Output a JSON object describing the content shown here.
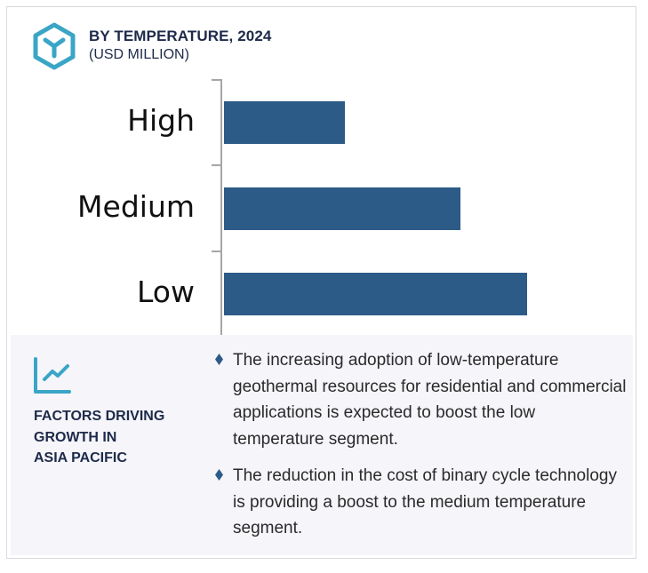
{
  "header": {
    "title": "BY TEMPERATURE, 2024",
    "subtitle": "(USD MILLION)",
    "logo_icon": "hexagon-y-icon"
  },
  "colors": {
    "bar": "#2d5b87",
    "accent": "#3aa5c6",
    "title_text": "#1e2a4a",
    "axis": "#a6a6a6",
    "factors_bg": "#f5f5fa"
  },
  "chart_data": {
    "type": "bar",
    "orientation": "horizontal",
    "title": "BY TEMPERATURE, 2024",
    "subtitle": "(USD MILLION)",
    "categories": [
      "High",
      "Medium",
      "Low"
    ],
    "values": [
      40,
      78,
      100
    ],
    "value_note": "Relative bar lengths (no value axis shown); Low = 100",
    "xlabel": "",
    "ylabel": "",
    "grid": false,
    "legend": null
  },
  "chart": {
    "labels": [
      "High",
      "Medium",
      "Low"
    ]
  },
  "factors": {
    "icon": "trend-chart-icon",
    "title_lines": [
      "FACTORS DRIVING",
      "GROWTH IN",
      "ASIA PACIFIC"
    ],
    "bullets": [
      "The increasing adoption of low-temperature geothermal resources for residential and commercial applications is expected to boost the low temperature segment.",
      "The reduction in the cost of binary cycle technology is providing a boost to the medium temperature segment."
    ]
  }
}
